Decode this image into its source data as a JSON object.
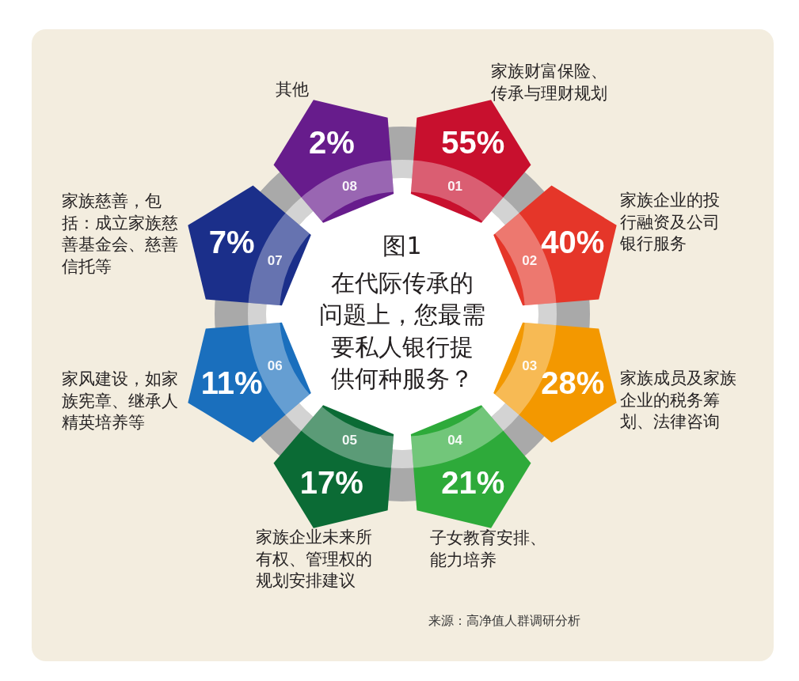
{
  "chart_data": {
    "type": "other",
    "title": "图1",
    "subtitle": "在代际传承的问题上，您最需要私人银行提供何种服务？",
    "categories": [
      "家族财富保险、传承与理财规划",
      "家族企业的投行融资及公司银行服务",
      "家族成员及家族企业的税务筹划、法律咨询",
      "子女教育安排、能力培养",
      "家族企业未来所有权、管理权的规划安排建议",
      "家风建设，如家族宪章、继承人精英培养等",
      "家族慈善，包括：成立家族慈善基金会、慈善信托等",
      "其他"
    ],
    "values": [
      55,
      40,
      28,
      21,
      17,
      11,
      7,
      2
    ],
    "value_labels": [
      "55%",
      "40%",
      "28%",
      "21%",
      "17%",
      "11%",
      "7%",
      "2%"
    ],
    "colors": [
      "#c8102e",
      "#e53629",
      "#f39800",
      "#2eaa3a",
      "#0b6b35",
      "#1a6fbd",
      "#1b2f8a",
      "#671c8c"
    ],
    "annotations": [
      {
        "text": "01",
        "x": "家族财富保险、传承与理财规划"
      },
      {
        "text": "02",
        "x": "家族企业的投行融资及公司银行服务"
      },
      {
        "text": "03",
        "x": "家族成员及家族企业的税务筹划、法律咨询"
      },
      {
        "text": "04",
        "x": "子女教育安排、能力培养"
      },
      {
        "text": "05",
        "x": "家族企业未来所有权、管理权的规划安排建议"
      },
      {
        "text": "06",
        "x": "家风建设，如家族宪章、继承人精英培养等"
      },
      {
        "text": "07",
        "x": "家族慈善，包括：成立家族慈善基金会、慈善信托等"
      },
      {
        "text": "08",
        "x": "其他"
      },
      "来源：高净值人群调研分析"
    ]
  }
}
